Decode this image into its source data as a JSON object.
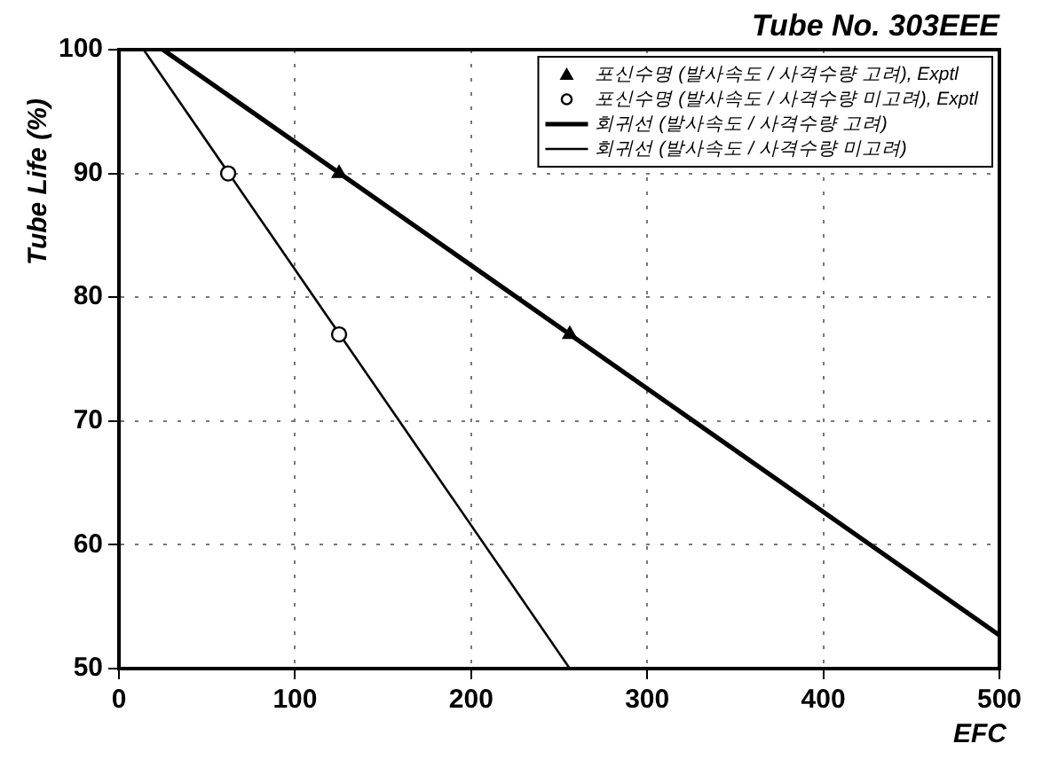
{
  "chart_data": {
    "type": "scatter",
    "title": "Tube No. 303EEE",
    "xlabel": "EFC",
    "ylabel": "Tube Life (%)",
    "xlim": [
      0,
      500
    ],
    "xticks": [
      0,
      100,
      200,
      300,
      400,
      500
    ],
    "ylim": [
      50,
      100
    ],
    "yticks": [
      50,
      60,
      70,
      80,
      90,
      100
    ],
    "grid": true,
    "legend": "top right",
    "series": [
      {
        "name": "포신수명 (발사속도 / 사격수량 고려), Exptl",
        "marker": "triangle",
        "color": "#000000",
        "x": [
          125,
          256
        ],
        "values": [
          90,
          77
        ]
      },
      {
        "name": "포신수명 (발사속도 / 사격수량 미고려), Exptl",
        "marker": "circle",
        "color": "#000000",
        "x": [
          62,
          125
        ],
        "values": [
          90,
          77
        ]
      },
      {
        "name": "회귀선 (발사속도 / 사격수량 고려)",
        "type": "line",
        "marker": "none",
        "color": "#000000",
        "x": [
          25,
          500
        ],
        "values": [
          100,
          52.7
        ]
      },
      {
        "name": "회귀선 (발사속도 / 사격수량 미고려)",
        "type": "line",
        "marker": "none",
        "color": "#000000",
        "x": [
          14,
          256
        ],
        "values": [
          100,
          50
        ]
      }
    ]
  }
}
